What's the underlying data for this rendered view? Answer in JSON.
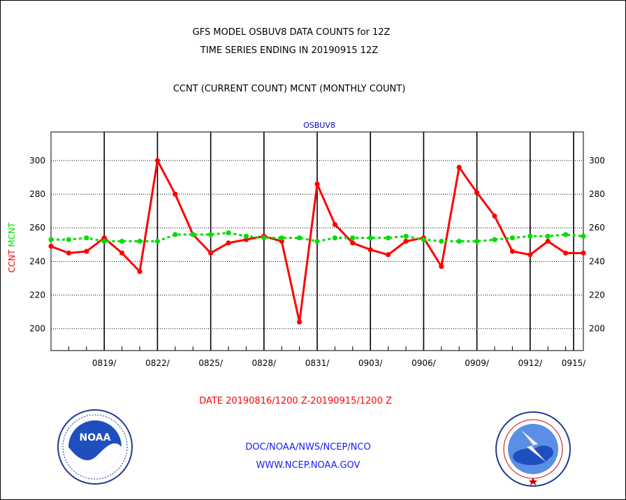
{
  "header": {
    "title_line1": "GFS MODEL OSBUV8 DATA COUNTS for 12Z",
    "title_line2": "TIME SERIES ENDING IN 20190915 12Z",
    "subtitle": "CCNT (CURRENT COUNT) MCNT (MONTHLY COUNT)"
  },
  "footer": {
    "date_range": "DATE 20190816/1200 Z-20190915/1200 Z",
    "org_line": "DOC/NOAA/NWS/NCEP/NCO",
    "website": "WWW.NCEP.NOAA.GOV"
  },
  "logos": {
    "left": "NOAA",
    "left_icon": "noaa-logo-icon",
    "right_icon": "nws-logo-icon"
  },
  "colors": {
    "ccnt": "#ff0000",
    "mcnt": "#00dd00",
    "plot_label": "#0000cc",
    "footer_links": "#1a1aff"
  },
  "chart_data": {
    "type": "line",
    "title": "OSBUV8",
    "ylabel_left_parts": [
      "CCNT",
      "MCNT"
    ],
    "ylim": [
      187,
      317
    ],
    "yticks": [
      200,
      220,
      240,
      260,
      280,
      300
    ],
    "xlim": [
      0,
      30
    ],
    "x_dates_first": "0816",
    "xtick_labels": [
      "0819/",
      "0822/",
      "0825/",
      "0828/",
      "0831/",
      "0903/",
      "0906/",
      "0909/",
      "0912/",
      "0915/"
    ],
    "xtick_positions": [
      3,
      6,
      9,
      12,
      15,
      18,
      21,
      24,
      27,
      30
    ],
    "grid": true,
    "series": [
      {
        "name": "CCNT",
        "color": "#ff0000",
        "x": [
          0,
          1,
          2,
          3,
          4,
          5,
          6,
          7,
          8,
          9,
          10,
          11,
          12,
          13,
          14,
          15,
          16,
          17,
          18,
          19,
          20,
          21,
          22,
          23,
          24,
          25,
          26,
          27,
          28,
          29,
          30
        ],
        "values": [
          249,
          245,
          246,
          254,
          245,
          234,
          300,
          280,
          256,
          245,
          251,
          253,
          255,
          252,
          204,
          286,
          262,
          251,
          247,
          244,
          252,
          254,
          237,
          296,
          281,
          267,
          246,
          244,
          252,
          245,
          245
        ]
      },
      {
        "name": "MCNT",
        "color": "#00dd00",
        "x": [
          0,
          1,
          2,
          3,
          4,
          5,
          6,
          7,
          8,
          9,
          10,
          11,
          12,
          13,
          14,
          15,
          16,
          17,
          18,
          19,
          20,
          21,
          22,
          23,
          24,
          25,
          26,
          27,
          28,
          29,
          30
        ],
        "values": [
          253,
          253,
          254,
          252,
          252,
          252,
          252,
          256,
          256,
          256,
          257,
          255,
          254,
          254,
          254,
          252,
          254,
          254,
          254,
          254,
          255,
          253,
          252,
          252,
          252,
          253,
          254,
          255,
          255,
          256,
          255
        ]
      }
    ]
  }
}
